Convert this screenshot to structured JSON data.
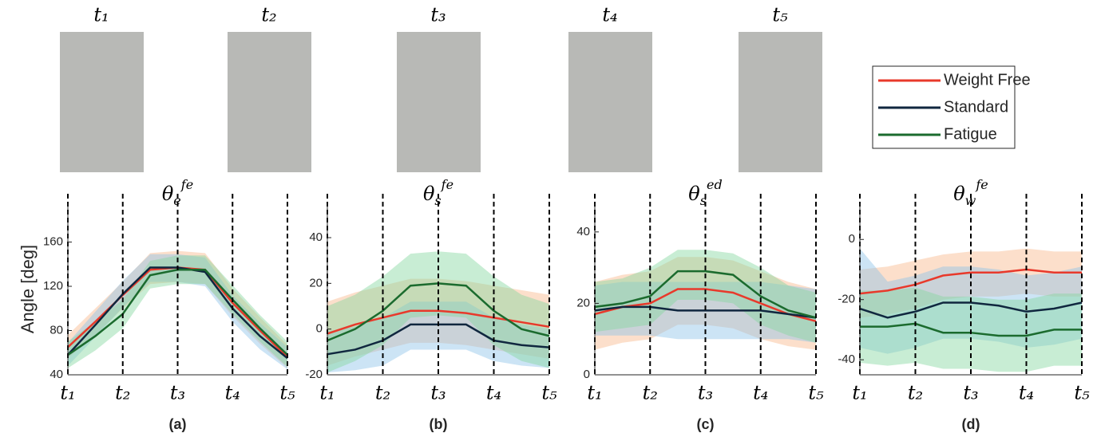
{
  "photos": [
    {
      "label": "t₁"
    },
    {
      "label": "t₂"
    },
    {
      "label": "t₃"
    },
    {
      "label": "t₄"
    },
    {
      "label": "t₅"
    }
  ],
  "chart_data": [
    {
      "type": "line",
      "label": "(a)",
      "ylabel": "Angle [deg]",
      "title": {
        "symbol": "θ",
        "sub": "e",
        "sup": "fe"
      },
      "x": [
        0,
        1,
        2,
        3,
        4,
        5,
        6,
        7,
        8
      ],
      "xlim": [
        0,
        8
      ],
      "xticks": [
        {
          "value": 0,
          "label": "t₁"
        },
        {
          "value": 2,
          "label": "t₂"
        },
        {
          "value": 4,
          "label": "t₃"
        },
        {
          "value": 6,
          "label": "t₄"
        },
        {
          "value": 8,
          "label": "t₅"
        }
      ],
      "ylim": [
        40,
        195
      ],
      "yticks": [
        40,
        80,
        120,
        160
      ],
      "grid": true,
      "series": [
        {
          "name": "Weight Free",
          "color": "#e8392b",
          "band_color": "#f9b78c",
          "values": [
            65,
            88,
            112,
            135,
            137,
            135,
            105,
            80,
            56
          ],
          "lower": [
            55,
            76,
            100,
            122,
            124,
            122,
            93,
            68,
            46
          ],
          "upper": [
            76,
            100,
            124,
            150,
            152,
            150,
            118,
            92,
            67
          ]
        },
        {
          "name": "Standard",
          "color": "#10273f",
          "band_color": "#8fc3e8",
          "values": [
            58,
            85,
            113,
            137,
            137,
            133,
            100,
            75,
            55
          ],
          "lower": [
            48,
            74,
            101,
            124,
            124,
            120,
            88,
            63,
            45
          ],
          "upper": [
            69,
            97,
            125,
            149,
            149,
            146,
            112,
            87,
            65
          ]
        },
        {
          "name": "Fatigue",
          "color": "#1b6b2e",
          "band_color": "#86d6a0",
          "values": [
            58,
            75,
            95,
            130,
            135,
            135,
            108,
            82,
            58
          ],
          "lower": [
            46,
            62,
            82,
            118,
            122,
            122,
            95,
            70,
            47
          ],
          "upper": [
            70,
            88,
            108,
            143,
            148,
            148,
            121,
            94,
            70
          ]
        }
      ]
    },
    {
      "type": "line",
      "label": "(b)",
      "title": {
        "symbol": "θ",
        "sub": "s",
        "sup": "fe"
      },
      "x": [
        0,
        1,
        2,
        3,
        4,
        5,
        6,
        7,
        8
      ],
      "xlim": [
        0,
        8
      ],
      "xticks": [
        {
          "value": 0,
          "label": "t₁"
        },
        {
          "value": 2,
          "label": "t₂"
        },
        {
          "value": 4,
          "label": "t₃"
        },
        {
          "value": 6,
          "label": "t₄"
        },
        {
          "value": 8,
          "label": "t₅"
        }
      ],
      "ylim": [
        -20,
        55
      ],
      "yticks": [
        -20,
        0,
        20,
        40
      ],
      "grid": true,
      "series": [
        {
          "name": "Weight Free",
          "color": "#e8392b",
          "band_color": "#f9b78c",
          "values": [
            -2,
            2,
            5,
            8,
            8,
            7,
            5,
            3,
            1
          ],
          "lower": [
            -16,
            -12,
            -9,
            -6,
            -6,
            -7,
            -9,
            -11,
            -13
          ],
          "upper": [
            12,
            16,
            19,
            22,
            22,
            21,
            19,
            17,
            15
          ]
        },
        {
          "name": "Standard",
          "color": "#10273f",
          "band_color": "#8fc3e8",
          "values": [
            -11,
            -9,
            -5,
            2,
            2,
            2,
            -5,
            -7,
            -8
          ],
          "lower": [
            -19,
            -18,
            -16,
            -9,
            -9,
            -9,
            -14,
            -16,
            -17
          ],
          "upper": [
            -1,
            1,
            5,
            12,
            12,
            12,
            5,
            2,
            0
          ]
        },
        {
          "name": "Fatigue",
          "color": "#1b6b2e",
          "band_color": "#86d6a0",
          "values": [
            -5,
            0,
            8,
            19,
            20,
            19,
            8,
            0,
            -3
          ],
          "lower": [
            -19,
            -14,
            -7,
            5,
            6,
            5,
            -7,
            -14,
            -17
          ],
          "upper": [
            10,
            15,
            23,
            33,
            34,
            33,
            23,
            15,
            11
          ]
        }
      ]
    },
    {
      "type": "line",
      "label": "(c)",
      "title": {
        "symbol": "θ",
        "sub": "s",
        "sup": "ed"
      },
      "x": [
        0,
        1,
        2,
        3,
        4,
        5,
        6,
        7,
        8
      ],
      "xlim": [
        0,
        8
      ],
      "xticks": [
        {
          "value": 0,
          "label": "t₁"
        },
        {
          "value": 2,
          "label": "t₂"
        },
        {
          "value": 4,
          "label": "t₃"
        },
        {
          "value": 6,
          "label": "t₄"
        },
        {
          "value": 8,
          "label": "t₅"
        }
      ],
      "ylim": [
        0,
        48
      ],
      "yticks": [
        0,
        20,
        40
      ],
      "grid": true,
      "series": [
        {
          "name": "Weight Free",
          "color": "#e8392b",
          "band_color": "#f9b78c",
          "values": [
            17,
            19,
            20,
            24,
            24,
            23,
            20,
            17,
            15
          ],
          "lower": [
            7,
            9,
            10,
            14,
            14,
            13,
            10,
            8,
            7
          ],
          "upper": [
            26,
            28,
            29,
            33,
            33,
            32,
            29,
            26,
            24
          ]
        },
        {
          "name": "Standard",
          "color": "#10273f",
          "band_color": "#8fc3e8",
          "values": [
            18,
            19,
            19,
            18,
            18,
            18,
            18,
            17,
            16
          ],
          "lower": [
            11,
            11,
            11,
            10,
            10,
            10,
            10,
            10,
            9
          ],
          "upper": [
            25,
            26,
            26,
            26,
            26,
            26,
            26,
            25,
            24
          ]
        },
        {
          "name": "Fatigue",
          "color": "#1b6b2e",
          "band_color": "#86d6a0",
          "values": [
            19,
            20,
            22,
            29,
            29,
            28,
            22,
            18,
            16
          ],
          "lower": [
            12,
            13,
            14,
            21,
            21,
            20,
            14,
            11,
            9
          ],
          "upper": [
            26,
            27,
            30,
            35,
            35,
            34,
            30,
            25,
            23
          ]
        }
      ]
    },
    {
      "type": "line",
      "label": "(d)",
      "title": {
        "symbol": "θ",
        "sub": "w",
        "sup": "fe"
      },
      "x": [
        0,
        1,
        2,
        3,
        4,
        5,
        6,
        7,
        8
      ],
      "xlim": [
        0,
        8
      ],
      "xticks": [
        {
          "value": 0,
          "label": "t₁"
        },
        {
          "value": 2,
          "label": "t₂"
        },
        {
          "value": 4,
          "label": "t₃"
        },
        {
          "value": 6,
          "label": "t₄"
        },
        {
          "value": 8,
          "label": "t₅"
        }
      ],
      "ylim": [
        -45,
        12
      ],
      "yticks": [
        -40,
        -20,
        0
      ],
      "grid": true,
      "series": [
        {
          "name": "Weight Free",
          "color": "#e8392b",
          "band_color": "#f9b78c",
          "values": [
            -18,
            -17,
            -15,
            -12,
            -11,
            -11,
            -10,
            -11,
            -11
          ],
          "lower": [
            -26,
            -25,
            -23,
            -20,
            -19,
            -19,
            -18,
            -19,
            -19
          ],
          "upper": [
            -10,
            -9,
            -7,
            -5,
            -4,
            -4,
            -3,
            -4,
            -4
          ]
        },
        {
          "name": "Standard",
          "color": "#10273f",
          "band_color": "#8fc3e8",
          "values": [
            -23,
            -26,
            -24,
            -21,
            -21,
            -22,
            -24,
            -23,
            -21
          ],
          "lower": [
            -36,
            -38,
            -36,
            -33,
            -33,
            -34,
            -36,
            -35,
            -33
          ],
          "upper": [
            -3,
            -14,
            -12,
            -9,
            -9,
            -10,
            -12,
            -11,
            -9
          ]
        },
        {
          "name": "Fatigue",
          "color": "#1b6b2e",
          "band_color": "#86d6a0",
          "values": [
            -29,
            -29,
            -28,
            -31,
            -31,
            -32,
            -32,
            -30,
            -30
          ],
          "lower": [
            -41,
            -42,
            -41,
            -43,
            -43,
            -44,
            -44,
            -42,
            -42
          ],
          "upper": [
            -17,
            -17,
            -16,
            -19,
            -19,
            -20,
            -20,
            -18,
            -18
          ]
        }
      ]
    }
  ]
}
